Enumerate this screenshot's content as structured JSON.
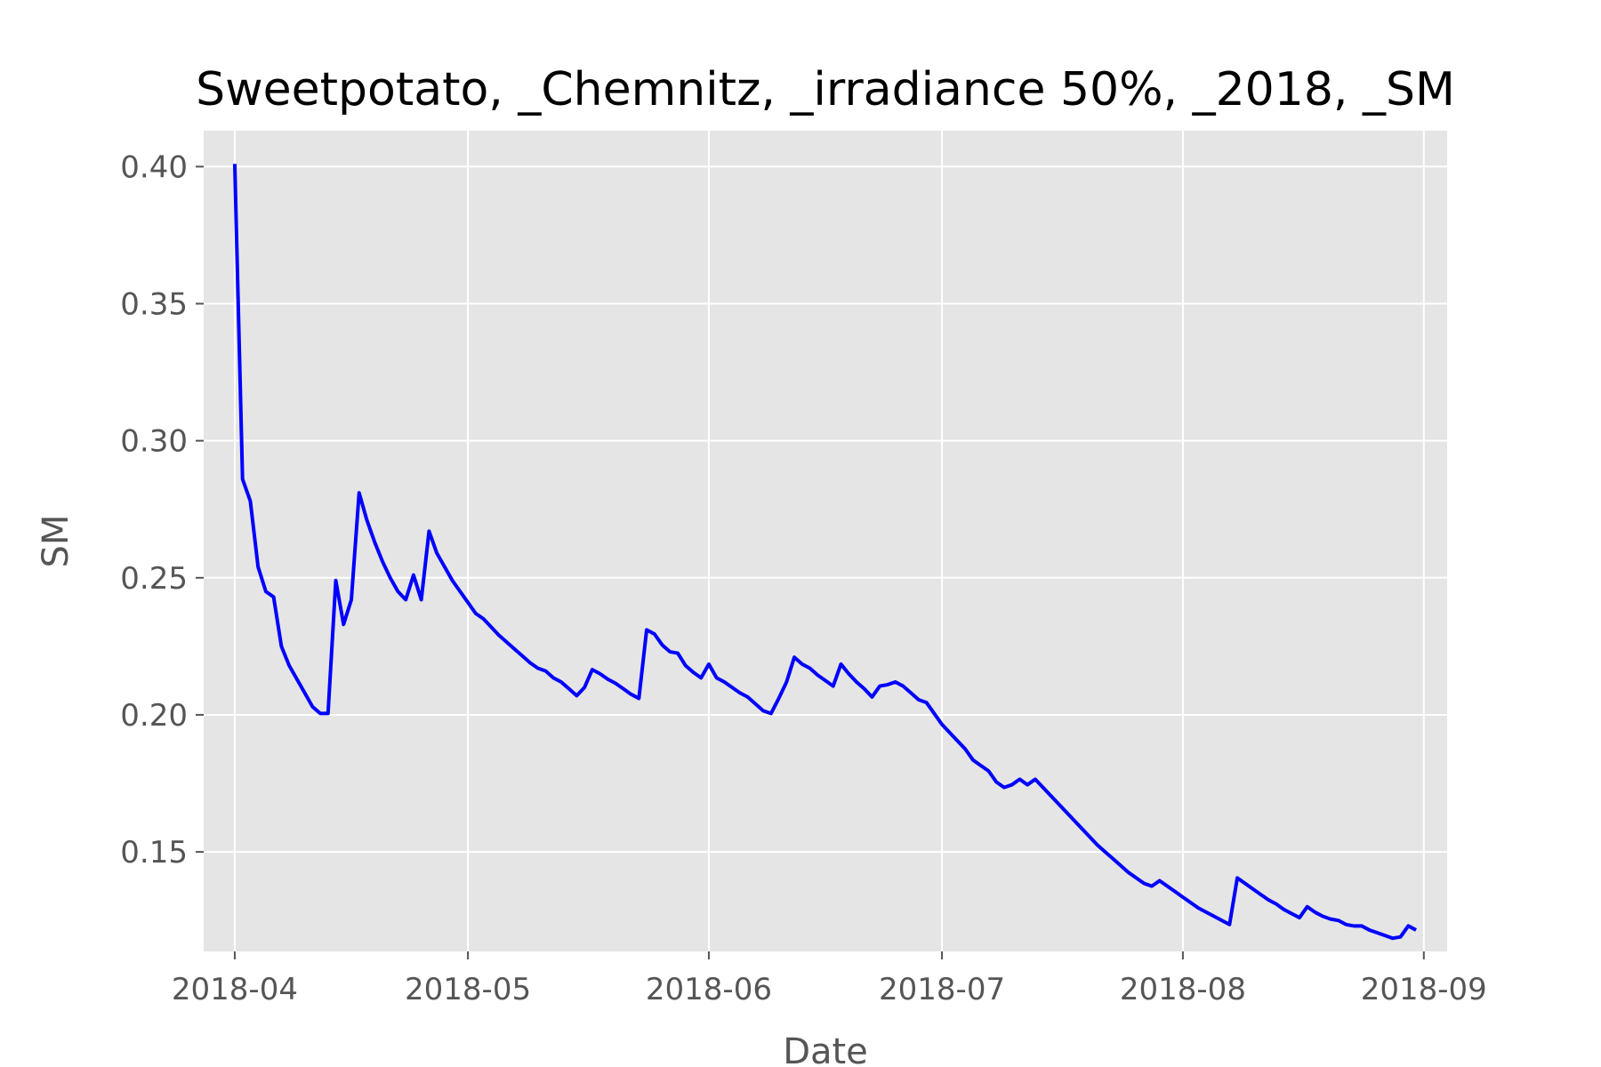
{
  "chart_data": {
    "type": "line",
    "title": "Sweetpotato, _Chemnitz, _irradiance 50%, _2018, _SM",
    "xlabel": "Date",
    "ylabel": "SM",
    "x_axis_type": "date",
    "xlim": [
      "2018-03-28",
      "2018-09-04"
    ],
    "ylim": [
      0.1137,
      0.4131
    ],
    "grid": true,
    "background": "#e5e5e5",
    "xticks": [
      {
        "date": "2018-04-01",
        "label": "2018-04"
      },
      {
        "date": "2018-05-01",
        "label": "2018-05"
      },
      {
        "date": "2018-06-01",
        "label": "2018-06"
      },
      {
        "date": "2018-07-01",
        "label": "2018-07"
      },
      {
        "date": "2018-08-01",
        "label": "2018-08"
      },
      {
        "date": "2018-09-01",
        "label": "2018-09"
      }
    ],
    "yticks": [
      {
        "value": 0.15,
        "label": "0.15"
      },
      {
        "value": 0.2,
        "label": "0.20"
      },
      {
        "value": 0.25,
        "label": "0.25"
      },
      {
        "value": 0.3,
        "label": "0.30"
      },
      {
        "value": 0.35,
        "label": "0.35"
      },
      {
        "value": 0.4,
        "label": "0.40"
      }
    ],
    "series": [
      {
        "color": "#0000ff",
        "points": [
          [
            "2018-04-01",
            0.401
          ],
          [
            "2018-04-02",
            0.286
          ],
          [
            "2018-04-03",
            0.278
          ],
          [
            "2018-04-04",
            0.254
          ],
          [
            "2018-04-05",
            0.245
          ],
          [
            "2018-04-06",
            0.243
          ],
          [
            "2018-04-07",
            0.225
          ],
          [
            "2018-04-08",
            0.218
          ],
          [
            "2018-04-09",
            0.213
          ],
          [
            "2018-04-10",
            0.208
          ],
          [
            "2018-04-11",
            0.203
          ],
          [
            "2018-04-12",
            0.2005
          ],
          [
            "2018-04-13",
            0.2005
          ],
          [
            "2018-04-14",
            0.249
          ],
          [
            "2018-04-15",
            0.233
          ],
          [
            "2018-04-16",
            0.242
          ],
          [
            "2018-04-17",
            0.281
          ],
          [
            "2018-04-18",
            0.271
          ],
          [
            "2018-04-19",
            0.263
          ],
          [
            "2018-04-20",
            0.256
          ],
          [
            "2018-04-21",
            0.25
          ],
          [
            "2018-04-22",
            0.245
          ],
          [
            "2018-04-23",
            0.242
          ],
          [
            "2018-04-24",
            0.251
          ],
          [
            "2018-04-25",
            0.242
          ],
          [
            "2018-04-26",
            0.267
          ],
          [
            "2018-04-27",
            0.259
          ],
          [
            "2018-04-28",
            0.254
          ],
          [
            "2018-04-29",
            0.249
          ],
          [
            "2018-04-30",
            0.245
          ],
          [
            "2018-05-01",
            0.241
          ],
          [
            "2018-05-02",
            0.237
          ],
          [
            "2018-05-03",
            0.235
          ],
          [
            "2018-05-04",
            0.232
          ],
          [
            "2018-05-05",
            0.229
          ],
          [
            "2018-05-06",
            0.2265
          ],
          [
            "2018-05-07",
            0.224
          ],
          [
            "2018-05-08",
            0.2215
          ],
          [
            "2018-05-09",
            0.219
          ],
          [
            "2018-05-10",
            0.217
          ],
          [
            "2018-05-11",
            0.216
          ],
          [
            "2018-05-12",
            0.2135
          ],
          [
            "2018-05-13",
            0.212
          ],
          [
            "2018-05-14",
            0.2095
          ],
          [
            "2018-05-15",
            0.207
          ],
          [
            "2018-05-16",
            0.21
          ],
          [
            "2018-05-17",
            0.2165
          ],
          [
            "2018-05-18",
            0.215
          ],
          [
            "2018-05-19",
            0.213
          ],
          [
            "2018-05-20",
            0.2115
          ],
          [
            "2018-05-21",
            0.2095
          ],
          [
            "2018-05-22",
            0.2075
          ],
          [
            "2018-05-23",
            0.206
          ],
          [
            "2018-05-24",
            0.231
          ],
          [
            "2018-05-25",
            0.2295
          ],
          [
            "2018-05-26",
            0.2255
          ],
          [
            "2018-05-27",
            0.223
          ],
          [
            "2018-05-28",
            0.2225
          ],
          [
            "2018-05-29",
            0.218
          ],
          [
            "2018-05-30",
            0.2155
          ],
          [
            "2018-05-31",
            0.2135
          ],
          [
            "2018-06-01",
            0.2185
          ],
          [
            "2018-06-02",
            0.2135
          ],
          [
            "2018-06-03",
            0.212
          ],
          [
            "2018-06-04",
            0.21
          ],
          [
            "2018-06-05",
            0.208
          ],
          [
            "2018-06-06",
            0.2065
          ],
          [
            "2018-06-07",
            0.204
          ],
          [
            "2018-06-08",
            0.2015
          ],
          [
            "2018-06-09",
            0.2005
          ],
          [
            "2018-06-10",
            0.206
          ],
          [
            "2018-06-11",
            0.212
          ],
          [
            "2018-06-12",
            0.221
          ],
          [
            "2018-06-13",
            0.2185
          ],
          [
            "2018-06-14",
            0.217
          ],
          [
            "2018-06-15",
            0.2145
          ],
          [
            "2018-06-16",
            0.2125
          ],
          [
            "2018-06-17",
            0.2105
          ],
          [
            "2018-06-18",
            0.2185
          ],
          [
            "2018-06-19",
            0.215
          ],
          [
            "2018-06-20",
            0.212
          ],
          [
            "2018-06-21",
            0.2095
          ],
          [
            "2018-06-22",
            0.2065
          ],
          [
            "2018-06-23",
            0.2105
          ],
          [
            "2018-06-24",
            0.211
          ],
          [
            "2018-06-25",
            0.212
          ],
          [
            "2018-06-26",
            0.2105
          ],
          [
            "2018-06-27",
            0.208
          ],
          [
            "2018-06-28",
            0.2055
          ],
          [
            "2018-06-29",
            0.2045
          ],
          [
            "2018-06-30",
            0.2005
          ],
          [
            "2018-07-01",
            0.1965
          ],
          [
            "2018-07-02",
            0.1935
          ],
          [
            "2018-07-03",
            0.1905
          ],
          [
            "2018-07-04",
            0.1875
          ],
          [
            "2018-07-05",
            0.1835
          ],
          [
            "2018-07-06",
            0.1815
          ],
          [
            "2018-07-07",
            0.1795
          ],
          [
            "2018-07-08",
            0.1755
          ],
          [
            "2018-07-09",
            0.1735
          ],
          [
            "2018-07-10",
            0.1745
          ],
          [
            "2018-07-11",
            0.1765
          ],
          [
            "2018-07-12",
            0.1745
          ],
          [
            "2018-07-13",
            0.1765
          ],
          [
            "2018-07-14",
            0.1735
          ],
          [
            "2018-07-15",
            0.1705
          ],
          [
            "2018-07-16",
            0.1675
          ],
          [
            "2018-07-17",
            0.1645
          ],
          [
            "2018-07-18",
            0.1615
          ],
          [
            "2018-07-19",
            0.1585
          ],
          [
            "2018-07-20",
            0.1555
          ],
          [
            "2018-07-21",
            0.1525
          ],
          [
            "2018-07-22",
            0.15
          ],
          [
            "2018-07-23",
            0.1475
          ],
          [
            "2018-07-24",
            0.145
          ],
          [
            "2018-07-25",
            0.1425
          ],
          [
            "2018-07-26",
            0.1405
          ],
          [
            "2018-07-27",
            0.1385
          ],
          [
            "2018-07-28",
            0.1375
          ],
          [
            "2018-07-29",
            0.1395
          ],
          [
            "2018-07-30",
            0.1375
          ],
          [
            "2018-07-31",
            0.1355
          ],
          [
            "2018-08-01",
            0.1335
          ],
          [
            "2018-08-02",
            0.1315
          ],
          [
            "2018-08-03",
            0.1295
          ],
          [
            "2018-08-04",
            0.128
          ],
          [
            "2018-08-05",
            0.1265
          ],
          [
            "2018-08-06",
            0.125
          ],
          [
            "2018-08-07",
            0.1235
          ],
          [
            "2018-08-08",
            0.1405
          ],
          [
            "2018-08-09",
            0.1385
          ],
          [
            "2018-08-10",
            0.1365
          ],
          [
            "2018-08-11",
            0.1345
          ],
          [
            "2018-08-12",
            0.1325
          ],
          [
            "2018-08-13",
            0.131
          ],
          [
            "2018-08-14",
            0.129
          ],
          [
            "2018-08-15",
            0.1275
          ],
          [
            "2018-08-16",
            0.126
          ],
          [
            "2018-08-17",
            0.13
          ],
          [
            "2018-08-18",
            0.128
          ],
          [
            "2018-08-19",
            0.1265
          ],
          [
            "2018-08-20",
            0.1255
          ],
          [
            "2018-08-21",
            0.125
          ],
          [
            "2018-08-22",
            0.1235
          ],
          [
            "2018-08-23",
            0.123
          ],
          [
            "2018-08-24",
            0.123
          ],
          [
            "2018-08-25",
            0.1215
          ],
          [
            "2018-08-26",
            0.1205
          ],
          [
            "2018-08-27",
            0.1195
          ],
          [
            "2018-08-28",
            0.1185
          ],
          [
            "2018-08-29",
            0.119
          ],
          [
            "2018-08-30",
            0.123
          ],
          [
            "2018-08-31",
            0.1215
          ]
        ]
      }
    ]
  }
}
